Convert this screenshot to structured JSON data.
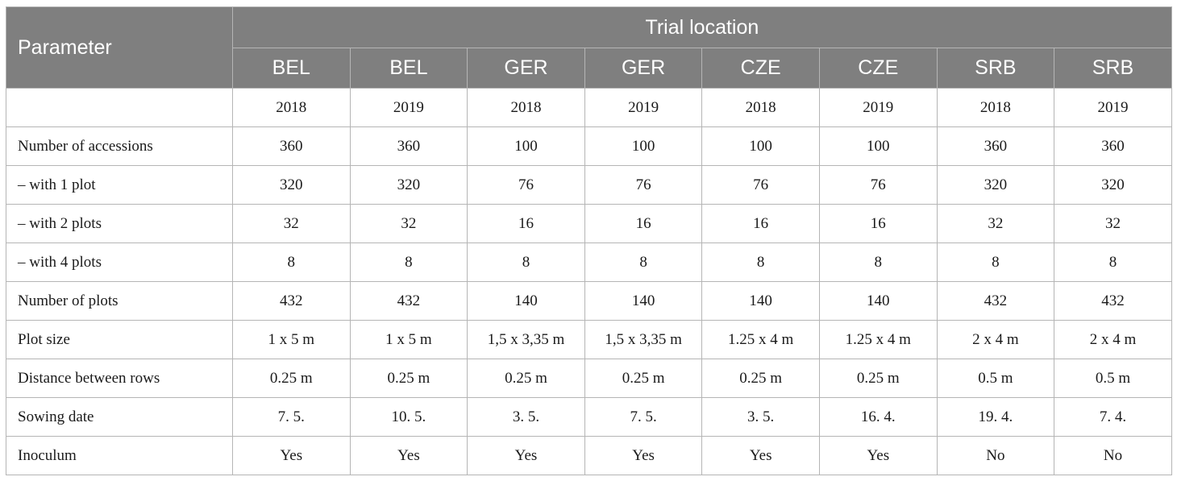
{
  "header": {
    "parameter": "Parameter",
    "trial_location": "Trial location",
    "locations": [
      "BEL",
      "BEL",
      "GER",
      "GER",
      "CZE",
      "CZE",
      "SRB",
      "SRB"
    ]
  },
  "rows": [
    {
      "label": "",
      "values": [
        "2018",
        "2019",
        "2018",
        "2019",
        "2018",
        "2019",
        "2018",
        "2019"
      ]
    },
    {
      "label": "Number of accessions",
      "values": [
        "360",
        "360",
        "100",
        "100",
        "100",
        "100",
        "360",
        "360"
      ]
    },
    {
      "label": "– with 1 plot",
      "values": [
        "320",
        "320",
        "76",
        "76",
        "76",
        "76",
        "320",
        "320"
      ]
    },
    {
      "label": "– with 2 plots",
      "values": [
        "32",
        "32",
        "16",
        "16",
        "16",
        "16",
        "32",
        "32"
      ]
    },
    {
      "label": "– with 4 plots",
      "values": [
        "8",
        "8",
        "8",
        "8",
        "8",
        "8",
        "8",
        "8"
      ]
    },
    {
      "label": "Number of plots",
      "values": [
        "432",
        "432",
        "140",
        "140",
        "140",
        "140",
        "432",
        "432"
      ]
    },
    {
      "label": "Plot size",
      "values": [
        "1 x 5 m",
        "1 x 5 m",
        "1,5 x 3,35 m",
        "1,5 x 3,35 m",
        "1.25 x 4 m",
        "1.25 x 4 m",
        "2 x 4 m",
        "2 x 4 m"
      ]
    },
    {
      "label": "Distance between rows",
      "values": [
        "0.25 m",
        "0.25 m",
        "0.25 m",
        "0.25 m",
        "0.25 m",
        "0.25 m",
        "0.5 m",
        "0.5 m"
      ]
    },
    {
      "label": "Sowing date",
      "values": [
        "7. 5.",
        "10. 5.",
        "3. 5.",
        "7. 5.",
        "3. 5.",
        "16. 4.",
        "19. 4.",
        "7. 4."
      ]
    },
    {
      "label": "Inoculum",
      "values": [
        "Yes",
        "Yes",
        "Yes",
        "Yes",
        "Yes",
        "Yes",
        "No",
        "No"
      ]
    }
  ]
}
